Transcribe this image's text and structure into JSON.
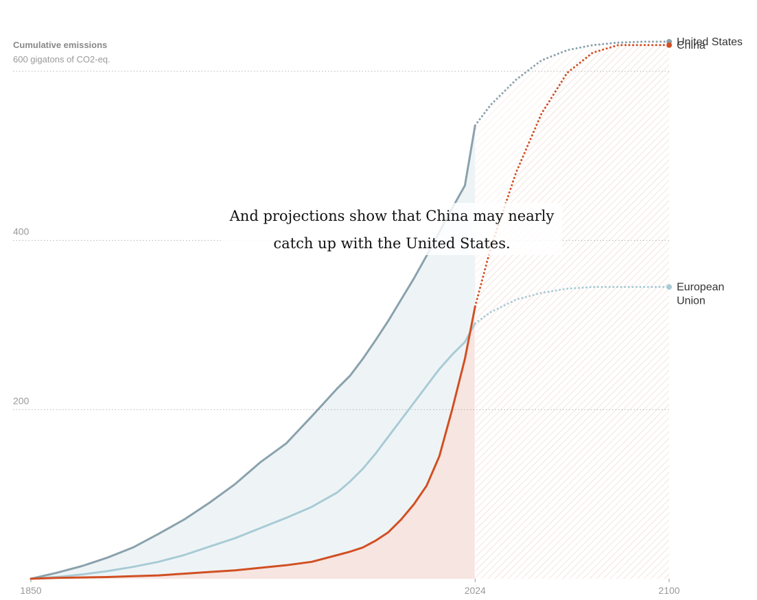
{
  "chart_data": {
    "type": "line",
    "title": "",
    "annotation": [
      "And projections show that China may nearly",
      "catch up with the United States."
    ],
    "ylabel": "Cumulative emissions",
    "yunit": "600 gigatons of CO2-eq.",
    "xlim": [
      1850,
      2100
    ],
    "ylim": [
      0,
      600
    ],
    "xticks": [
      "1850",
      "2024",
      "2100"
    ],
    "yticks": [
      {
        "value": 200,
        "label": "200"
      },
      {
        "value": 400,
        "label": "400"
      },
      {
        "value": 600,
        "label": ""
      }
    ],
    "historical_end": 2024,
    "grid": "horizontal dotted",
    "series": [
      {
        "name": "United States",
        "label_lines": [
          "United States"
        ],
        "color": "#8aa1ac",
        "historical": [
          [
            1850,
            0
          ],
          [
            1860,
            7
          ],
          [
            1870,
            15
          ],
          [
            1880,
            25
          ],
          [
            1890,
            37
          ],
          [
            1900,
            53
          ],
          [
            1910,
            70
          ],
          [
            1920,
            90
          ],
          [
            1930,
            112
          ],
          [
            1940,
            138
          ],
          [
            1950,
            160
          ],
          [
            1960,
            192
          ],
          [
            1970,
            225
          ],
          [
            1975,
            240
          ],
          [
            1980,
            260
          ],
          [
            1985,
            282
          ],
          [
            1990,
            305
          ],
          [
            1995,
            330
          ],
          [
            2000,
            355
          ],
          [
            2005,
            382
          ],
          [
            2010,
            410
          ],
          [
            2015,
            438
          ],
          [
            2020,
            465
          ],
          [
            2024,
            536
          ]
        ],
        "projection": [
          [
            2024,
            536
          ],
          [
            2030,
            560
          ],
          [
            2040,
            590
          ],
          [
            2050,
            613
          ],
          [
            2060,
            625
          ],
          [
            2070,
            631
          ],
          [
            2080,
            634
          ],
          [
            2090,
            635
          ],
          [
            2100,
            635
          ]
        ]
      },
      {
        "name": "China",
        "label_lines": [
          "China"
        ],
        "color": "#d14f22",
        "historical": [
          [
            1850,
            0
          ],
          [
            1860,
            1
          ],
          [
            1870,
            1.5
          ],
          [
            1880,
            2
          ],
          [
            1890,
            3
          ],
          [
            1900,
            4
          ],
          [
            1910,
            6
          ],
          [
            1920,
            8
          ],
          [
            1930,
            10
          ],
          [
            1940,
            13
          ],
          [
            1950,
            16
          ],
          [
            1960,
            20
          ],
          [
            1970,
            28
          ],
          [
            1975,
            32
          ],
          [
            1980,
            37
          ],
          [
            1985,
            45
          ],
          [
            1990,
            55
          ],
          [
            1995,
            70
          ],
          [
            2000,
            88
          ],
          [
            2005,
            110
          ],
          [
            2010,
            145
          ],
          [
            2015,
            200
          ],
          [
            2020,
            260
          ],
          [
            2024,
            322
          ]
        ],
        "projection": [
          [
            2024,
            322
          ],
          [
            2030,
            390
          ],
          [
            2040,
            480
          ],
          [
            2050,
            550
          ],
          [
            2060,
            598
          ],
          [
            2070,
            622
          ],
          [
            2080,
            631
          ],
          [
            2090,
            631
          ],
          [
            2100,
            631
          ]
        ]
      },
      {
        "name": "European Union",
        "label_lines": [
          "European",
          "Union"
        ],
        "color": "#a8cbd5",
        "historical": [
          [
            1850,
            0
          ],
          [
            1860,
            2
          ],
          [
            1870,
            5
          ],
          [
            1880,
            9
          ],
          [
            1890,
            14
          ],
          [
            1900,
            20
          ],
          [
            1910,
            28
          ],
          [
            1920,
            38
          ],
          [
            1930,
            48
          ],
          [
            1940,
            60
          ],
          [
            1950,
            72
          ],
          [
            1960,
            85
          ],
          [
            1970,
            102
          ],
          [
            1975,
            115
          ],
          [
            1980,
            130
          ],
          [
            1985,
            148
          ],
          [
            1990,
            168
          ],
          [
            1995,
            188
          ],
          [
            2000,
            208
          ],
          [
            2005,
            228
          ],
          [
            2010,
            248
          ],
          [
            2015,
            265
          ],
          [
            2020,
            280
          ],
          [
            2024,
            302
          ]
        ],
        "projection": [
          [
            2024,
            302
          ],
          [
            2030,
            315
          ],
          [
            2040,
            330
          ],
          [
            2050,
            338
          ],
          [
            2060,
            343
          ],
          [
            2070,
            345
          ],
          [
            2080,
            345
          ],
          [
            2090,
            345
          ],
          [
            2100,
            345
          ]
        ]
      }
    ]
  }
}
